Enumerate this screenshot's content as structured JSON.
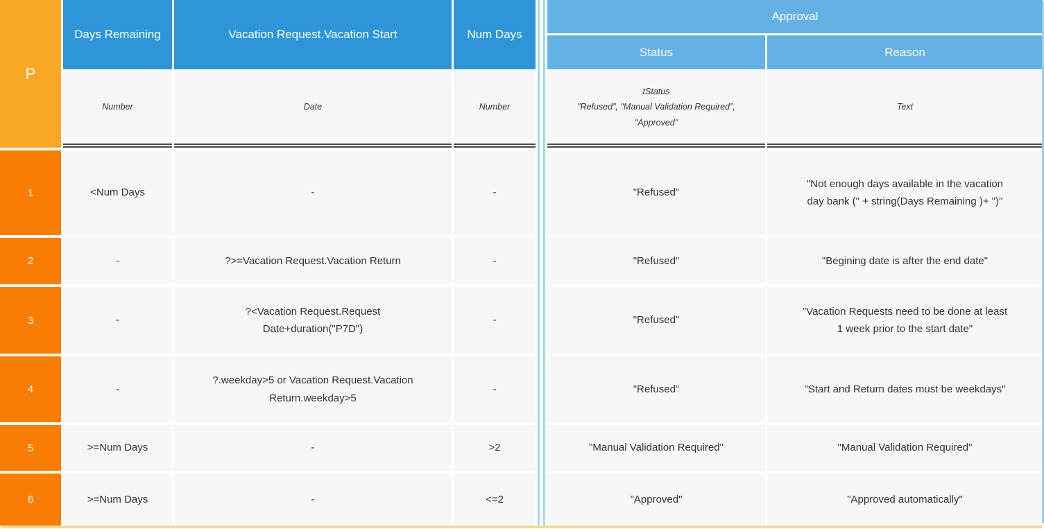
{
  "table": {
    "hit_policy": "P",
    "columns": {
      "days_remaining": {
        "label": "Days Remaining",
        "type": "Number"
      },
      "vacation_start": {
        "label": "Vacation Request.Vacation Start",
        "type": "Date"
      },
      "num_days": {
        "label": "Num Days",
        "type": "Number"
      },
      "approval": {
        "label": "Approval",
        "status": {
          "label": "Status",
          "type": "tStatus\n\"Refused\", \"Manual Validation Required\",\n\"Approved\""
        },
        "reason": {
          "label": "Reason",
          "type": "Text"
        }
      }
    },
    "rows": [
      {
        "num": "1",
        "days_remaining": "<Num Days",
        "vacation_start": "-",
        "num_days": "-",
        "status": "\"Refused\"",
        "reason": "\"Not enough days available in the vacation day bank (\"  + string(Days Remaining )+ \")\""
      },
      {
        "num": "2",
        "days_remaining": "-",
        "vacation_start": "?>=Vacation Request.Vacation Return",
        "num_days": "-",
        "status": "\"Refused\"",
        "reason": "\"Begining date is after the end date\""
      },
      {
        "num": "3",
        "days_remaining": "-",
        "vacation_start": "?<Vacation Request.Request Date+duration(\"P7D\")",
        "num_days": "-",
        "status": "\"Refused\"",
        "reason": "\"Vacation Requests need to be done at least 1 week prior to the start date\""
      },
      {
        "num": "4",
        "days_remaining": "-",
        "vacation_start": "?.weekday>5 or Vacation Request.Vacation Return.weekday>5",
        "num_days": "-",
        "status": "\"Refused\"",
        "reason": "\"Start and Return dates must be weekdays\""
      },
      {
        "num": "5",
        "days_remaining": ">=Num Days",
        "vacation_start": "-",
        "num_days": ">2",
        "status": "\"Manual Validation Required\"",
        "reason": "\"Manual Validation Required\""
      },
      {
        "num": "6",
        "days_remaining": ">=Num Days",
        "vacation_start": "-",
        "num_days": "<=2",
        "status": "\"Approved\"",
        "reason": "\"Approved automatically\""
      }
    ],
    "colors": {
      "header_dark_blue": "#2E96D8",
      "header_light_blue": "#63B1E5",
      "hit_policy_amber": "#F9A826",
      "row_number_orange": "#F87D00",
      "cell_background": "#F7F7F7",
      "io_divider_blue": "#A9D6F0",
      "right_border_blue": "#9FCFEC",
      "bottom_border_tan": "#F0DC96"
    }
  }
}
